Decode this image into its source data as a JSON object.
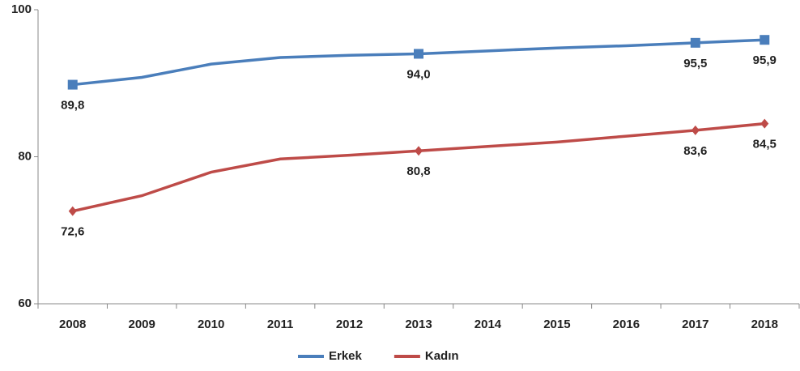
{
  "chart_data": {
    "type": "line",
    "categories": [
      "2008",
      "2009",
      "2010",
      "2011",
      "2012",
      "2013",
      "2014",
      "2015",
      "2016",
      "2017",
      "2018"
    ],
    "series": [
      {
        "name": "Erkek",
        "color": "#4a7ebb",
        "values": [
          89.8,
          90.8,
          92.6,
          93.5,
          93.8,
          94.0,
          94.4,
          94.8,
          95.1,
          95.5,
          95.9
        ],
        "value_labels": [
          "89,8",
          null,
          null,
          null,
          null,
          "94,0",
          null,
          null,
          null,
          "95,5",
          "95,9"
        ]
      },
      {
        "name": "Kadın",
        "color": "#be4b48",
        "values": [
          72.6,
          74.7,
          77.9,
          79.7,
          80.2,
          80.8,
          81.4,
          82.0,
          82.8,
          83.6,
          84.5
        ],
        "value_labels": [
          "72,6",
          null,
          null,
          null,
          null,
          "80,8",
          null,
          null,
          null,
          "83,6",
          "84,5"
        ]
      }
    ],
    "ylim": [
      60,
      100
    ],
    "yticks": [
      60,
      80,
      100
    ],
    "grid": false,
    "legend": "bottom"
  }
}
